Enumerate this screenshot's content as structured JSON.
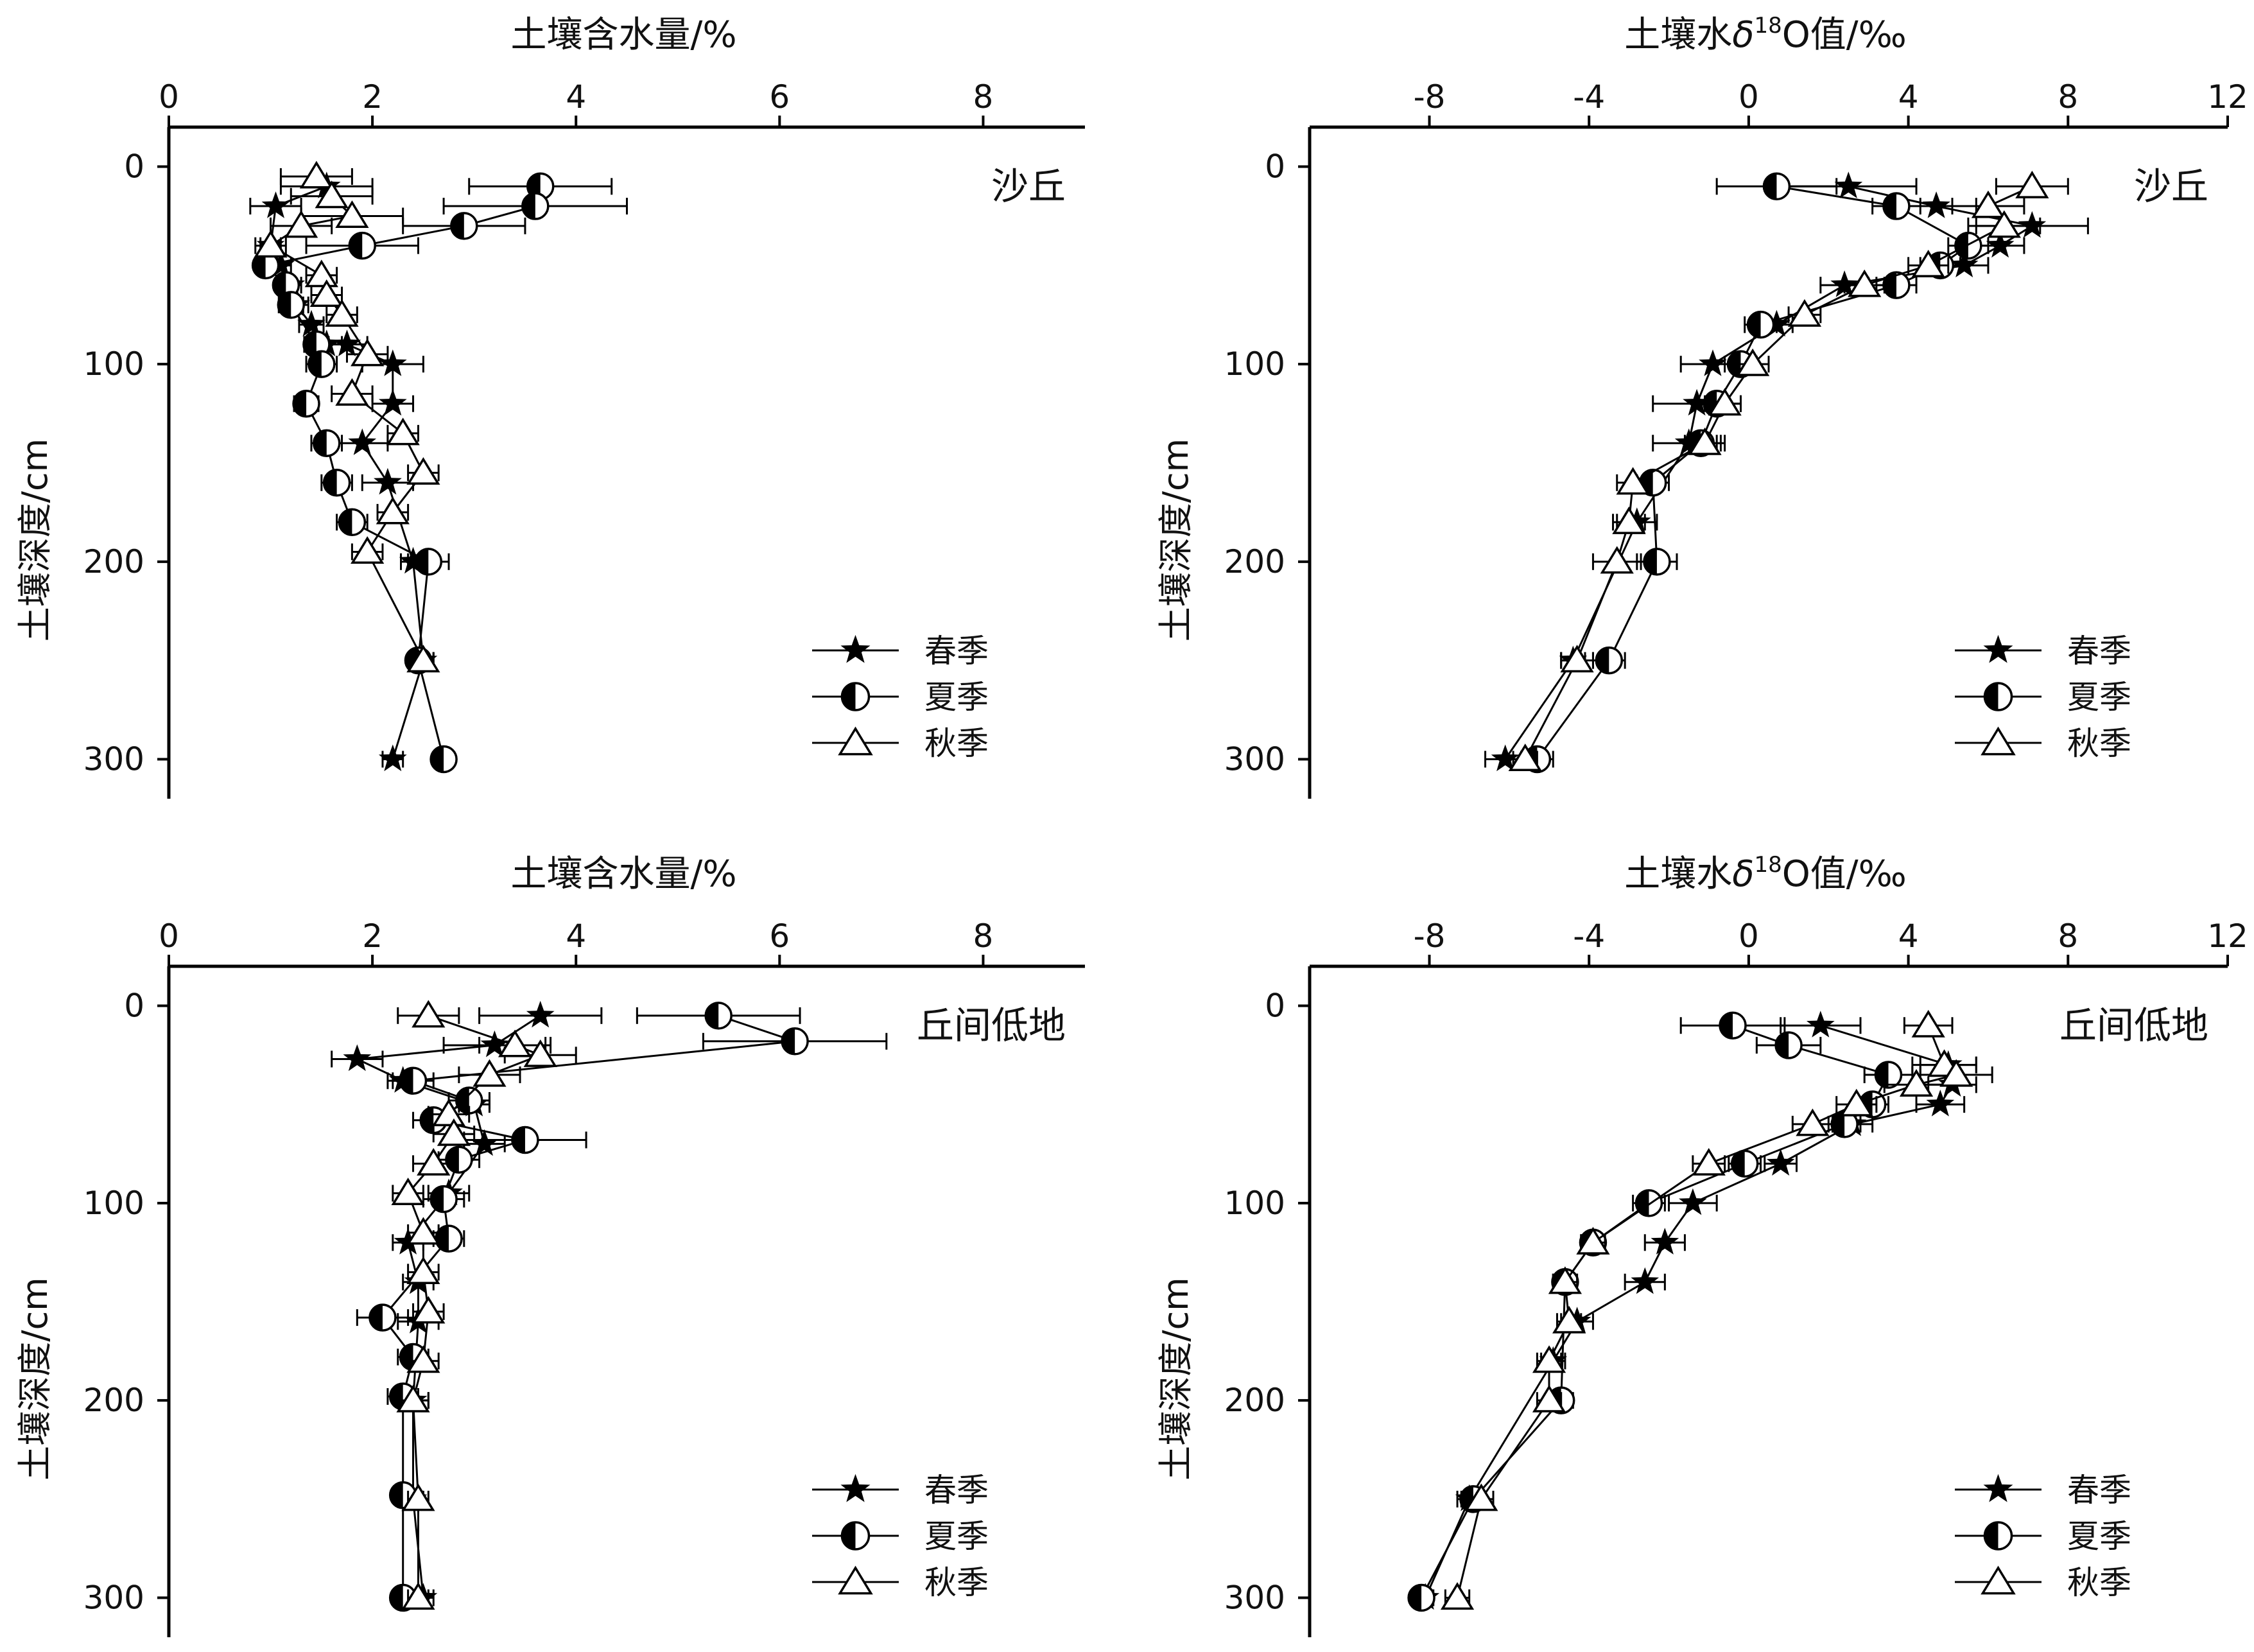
{
  "chart_data": [
    {
      "type": "scatter",
      "panel": "top-left",
      "title": "土壤含水量/%",
      "xlabel": "土壤含水量/%",
      "ylabel": "土壤深度/cm",
      "site": "沙丘",
      "xlim": [
        0,
        9
      ],
      "ylim": [
        320,
        -20
      ],
      "xticks": [
        0,
        2,
        4,
        6,
        8
      ],
      "yticks": [
        0,
        100,
        200,
        300
      ],
      "x_axis_position": "top",
      "y_inverted": true,
      "legend_position": "bottom-right",
      "series": [
        {
          "name": "春季",
          "marker": "star",
          "points": [
            [
              1.55,
              10,
              0.45
            ],
            [
              1.05,
              20,
              0.25
            ],
            [
              1.0,
              40,
              0.1
            ],
            [
              1.1,
              50,
              0.1
            ],
            [
              1.2,
              60,
              0.1
            ],
            [
              1.25,
              70,
              0.12
            ],
            [
              1.4,
              80,
              0.12
            ],
            [
              1.55,
              90,
              0.15
            ],
            [
              1.75,
              90,
              0.2
            ],
            [
              2.2,
              100,
              0.3
            ],
            [
              2.2,
              120,
              0.2
            ],
            [
              1.9,
              140,
              0.25
            ],
            [
              2.15,
              160,
              0.25
            ],
            [
              2.4,
              200,
              0.12
            ],
            [
              2.5,
              250,
              0.1
            ],
            [
              2.2,
              300,
              0.1
            ]
          ]
        },
        {
          "name": "夏季",
          "marker": "half-circle",
          "points": [
            [
              3.65,
              10,
              0.7
            ],
            [
              3.6,
              20,
              0.9
            ],
            [
              2.9,
              30,
              0.6
            ],
            [
              1.9,
              40,
              0.55
            ],
            [
              0.95,
              50,
              0.1
            ],
            [
              1.15,
              60,
              0.1
            ],
            [
              1.2,
              70,
              0.12
            ],
            [
              1.45,
              90,
              0.12
            ],
            [
              1.5,
              100,
              0.15
            ],
            [
              1.35,
              120,
              0.12
            ],
            [
              1.55,
              140,
              0.15
            ],
            [
              1.65,
              160,
              0.15
            ],
            [
              1.8,
              180,
              0.15
            ],
            [
              2.55,
              200,
              0.2
            ],
            [
              2.45,
              250,
              0.1
            ],
            [
              2.7,
              300,
              0.1
            ]
          ]
        },
        {
          "name": "秋季",
          "marker": "triangle",
          "points": [
            [
              1.45,
              5,
              0.35
            ],
            [
              1.6,
              15,
              0.4
            ],
            [
              1.8,
              25,
              0.5
            ],
            [
              1.3,
              30,
              0.3
            ],
            [
              1.0,
              40,
              0.15
            ],
            [
              1.5,
              55,
              0.15
            ],
            [
              1.55,
              65,
              0.15
            ],
            [
              1.7,
              75,
              0.15
            ],
            [
              1.95,
              95,
              0.2
            ],
            [
              1.8,
              115,
              0.2
            ],
            [
              2.3,
              135,
              0.15
            ],
            [
              2.5,
              155,
              0.15
            ],
            [
              2.2,
              175,
              0.15
            ],
            [
              1.95,
              195,
              0.15
            ],
            [
              2.5,
              250,
              0.1
            ]
          ]
        }
      ]
    },
    {
      "type": "scatter",
      "panel": "top-right",
      "title": "土壤水δ18O值/‰",
      "title_parts": {
        "prefix": "土壤水",
        "italic": "δ",
        "sup": "18",
        "suffix": "O值/‰"
      },
      "xlabel": "土壤水δ18O值/‰",
      "ylabel": "土壤深度/cm",
      "site": "沙丘",
      "xlim": [
        -11,
        12
      ],
      "ylim": [
        320,
        -20
      ],
      "xticks": [
        -8,
        -4,
        0,
        4,
        8,
        12
      ],
      "yticks": [
        0,
        100,
        200,
        300
      ],
      "x_axis_position": "top",
      "y_inverted": true,
      "legend_position": "bottom-right",
      "series": [
        {
          "name": "春季",
          "marker": "star",
          "points": [
            [
              2.5,
              10,
              1.7
            ],
            [
              4.7,
              20,
              1.0
            ],
            [
              7.1,
              30,
              1.4
            ],
            [
              6.3,
              40,
              0.6
            ],
            [
              5.4,
              50,
              0.6
            ],
            [
              2.4,
              60,
              0.6
            ],
            [
              0.7,
              80,
              0.4
            ],
            [
              -0.9,
              100,
              0.8
            ],
            [
              -1.3,
              120,
              1.1
            ],
            [
              -1.5,
              140,
              0.9
            ],
            [
              -2.8,
              180,
              0.5
            ],
            [
              -4.4,
              250,
              0.3
            ],
            [
              -6.1,
              300,
              0.5
            ]
          ]
        },
        {
          "name": "夏季",
          "marker": "half-circle",
          "points": [
            [
              0.7,
              10,
              1.5
            ],
            [
              3.7,
              20,
              0.6
            ],
            [
              5.5,
              40,
              0.5
            ],
            [
              4.8,
              50,
              0.5
            ],
            [
              3.7,
              60,
              0.5
            ],
            [
              0.3,
              80,
              0.4
            ],
            [
              -0.2,
              100,
              0.4
            ],
            [
              -0.8,
              120,
              0.3
            ],
            [
              -1.2,
              140,
              0.4
            ],
            [
              -2.4,
              160,
              0.4
            ],
            [
              -2.3,
              200,
              0.5
            ],
            [
              -3.5,
              250,
              0.4
            ],
            [
              -5.3,
              300,
              0.4
            ]
          ]
        },
        {
          "name": "秋季",
          "marker": "triangle",
          "points": [
            [
              7.1,
              10,
              0.9
            ],
            [
              6.0,
              20,
              0.9
            ],
            [
              6.4,
              30,
              0.9
            ],
            [
              4.5,
              50,
              0.5
            ],
            [
              2.9,
              60,
              0.5
            ],
            [
              1.4,
              75,
              0.4
            ],
            [
              0.1,
              100,
              0.4
            ],
            [
              -0.6,
              120,
              0.4
            ],
            [
              -1.1,
              140,
              0.4
            ],
            [
              -2.9,
              160,
              0.4
            ],
            [
              -3.0,
              180,
              0.4
            ],
            [
              -3.3,
              200,
              0.6
            ],
            [
              -4.3,
              250,
              0.4
            ],
            [
              -5.6,
              300,
              0.3
            ]
          ]
        }
      ]
    },
    {
      "type": "scatter",
      "panel": "bottom-left",
      "title": "土壤含水量/%",
      "xlabel": "土壤含水量/%",
      "ylabel": "土壤深度/cm",
      "site": "丘间低地",
      "xlim": [
        0,
        9
      ],
      "ylim": [
        320,
        -20
      ],
      "xticks": [
        0,
        2,
        4,
        6,
        8
      ],
      "yticks": [
        0,
        100,
        200,
        300
      ],
      "x_axis_position": "top",
      "y_inverted": true,
      "legend_position": "bottom-right",
      "series": [
        {
          "name": "春季",
          "marker": "star",
          "points": [
            [
              3.65,
              5,
              0.6
            ],
            [
              3.2,
              20,
              0.5
            ],
            [
              1.85,
              27,
              0.25
            ],
            [
              2.3,
              38,
              0.15
            ],
            [
              3.0,
              50,
              0.15
            ],
            [
              3.1,
              70,
              0.2
            ],
            [
              2.75,
              95,
              0.2
            ],
            [
              2.35,
              120,
              0.15
            ],
            [
              2.45,
              140,
              0.15
            ],
            [
              2.45,
              160,
              0.2
            ],
            [
              2.4,
              200,
              0.15
            ],
            [
              2.4,
              250,
              0.1
            ],
            [
              2.5,
              300,
              0.1
            ]
          ]
        },
        {
          "name": "夏季",
          "marker": "half-circle",
          "points": [
            [
              5.4,
              5,
              0.8
            ],
            [
              6.15,
              18,
              0.9
            ],
            [
              2.4,
              38,
              0.2
            ],
            [
              2.95,
              48,
              0.2
            ],
            [
              2.6,
              58,
              0.2
            ],
            [
              3.5,
              68,
              0.6
            ],
            [
              2.85,
              78,
              0.2
            ],
            [
              2.7,
              98,
              0.2
            ],
            [
              2.75,
              118,
              0.15
            ],
            [
              2.1,
              158,
              0.25
            ],
            [
              2.4,
              178,
              0.15
            ],
            [
              2.3,
              198,
              0.15
            ],
            [
              2.3,
              248,
              0.1
            ],
            [
              2.3,
              300,
              0.1
            ]
          ]
        },
        {
          "name": "秋季",
          "marker": "triangle",
          "points": [
            [
              2.55,
              5,
              0.3
            ],
            [
              3.4,
              20,
              0.35
            ],
            [
              3.65,
              25,
              0.35
            ],
            [
              3.15,
              35,
              0.3
            ],
            [
              2.75,
              55,
              0.2
            ],
            [
              2.8,
              65,
              0.2
            ],
            [
              2.6,
              80,
              0.2
            ],
            [
              2.35,
              95,
              0.15
            ],
            [
              2.5,
              115,
              0.15
            ],
            [
              2.5,
              135,
              0.15
            ],
            [
              2.55,
              155,
              0.15
            ],
            [
              2.5,
              180,
              0.15
            ],
            [
              2.4,
              200,
              0.15
            ],
            [
              2.45,
              250,
              0.1
            ],
            [
              2.45,
              300,
              0.1
            ]
          ]
        }
      ]
    },
    {
      "type": "scatter",
      "panel": "bottom-right",
      "title": "土壤水δ18O值/‰",
      "title_parts": {
        "prefix": "土壤水",
        "italic": "δ",
        "sup": "18",
        "suffix": "O值/‰"
      },
      "xlabel": "土壤水δ18O值/‰",
      "ylabel": "土壤深度/cm",
      "site": "丘间低地",
      "xlim": [
        -11,
        12
      ],
      "ylim": [
        320,
        -20
      ],
      "xticks": [
        -8,
        -4,
        0,
        4,
        8,
        12
      ],
      "yticks": [
        0,
        100,
        200,
        300
      ],
      "x_axis_position": "top",
      "y_inverted": true,
      "legend_position": "bottom-right",
      "series": [
        {
          "name": "春季",
          "marker": "star",
          "points": [
            [
              1.8,
              10,
              1.0
            ],
            [
              5.0,
              30,
              0.7
            ],
            [
              5.1,
              40,
              0.6
            ],
            [
              4.8,
              50,
              0.6
            ],
            [
              2.6,
              60,
              0.5
            ],
            [
              0.8,
              80,
              0.4
            ],
            [
              -1.4,
              100,
              0.6
            ],
            [
              -2.1,
              120,
              0.5
            ],
            [
              -2.6,
              140,
              0.5
            ],
            [
              -4.3,
              160,
              0.4
            ],
            [
              -4.9,
              180,
              0.3
            ],
            [
              -7.0,
              250,
              0.3
            ],
            [
              -8.1,
              300,
              0.2
            ]
          ]
        },
        {
          "name": "夏季",
          "marker": "half-circle",
          "points": [
            [
              -0.4,
              10,
              1.3
            ],
            [
              1.0,
              20,
              0.8
            ],
            [
              3.5,
              35,
              0.6
            ],
            [
              3.1,
              50,
              0.4
            ],
            [
              2.4,
              60,
              0.4
            ],
            [
              -0.1,
              80,
              0.4
            ],
            [
              -2.5,
              100,
              0.4
            ],
            [
              -3.9,
              120,
              0.3
            ],
            [
              -4.6,
              140,
              0.3
            ],
            [
              -4.7,
              200,
              0.3
            ],
            [
              -6.9,
              250,
              0.3
            ],
            [
              -8.2,
              300,
              0.2
            ]
          ]
        },
        {
          "name": "秋季",
          "marker": "triangle",
          "points": [
            [
              4.5,
              10,
              0.6
            ],
            [
              4.9,
              30,
              0.8
            ],
            [
              5.2,
              35,
              0.9
            ],
            [
              4.2,
              40,
              0.8
            ],
            [
              2.7,
              50,
              0.5
            ],
            [
              1.6,
              60,
              0.5
            ],
            [
              -1.0,
              80,
              0.4
            ],
            [
              -3.9,
              120,
              0.3
            ],
            [
              -4.6,
              140,
              0.3
            ],
            [
              -4.5,
              160,
              0.3
            ],
            [
              -5.0,
              180,
              0.3
            ],
            [
              -5.0,
              200,
              0.3
            ],
            [
              -6.7,
              250,
              0.3
            ],
            [
              -7.3,
              300,
              0.3
            ]
          ]
        }
      ]
    }
  ]
}
